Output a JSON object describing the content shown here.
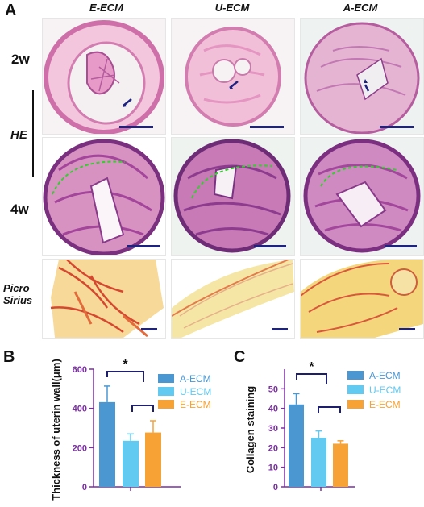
{
  "figure": {
    "panel_a_letter": "A",
    "panel_b_letter": "B",
    "panel_c_letter": "C",
    "columns": [
      "E-ECM",
      "U-ECM",
      "A-ECM"
    ],
    "rows": {
      "w2": "2w",
      "he": "HE",
      "w4": "4w",
      "picro_line1": "Picro",
      "picro_line2": "Sirius"
    }
  },
  "colors": {
    "a_ecm": "#4a97d2",
    "u_ecm": "#62c9f1",
    "e_ecm": "#f6a234",
    "axis": "#7b2fa1",
    "bracket": "#1d1f6e",
    "he_pink": "#e88fc0",
    "he_purple": "#9a3c8f",
    "sirius_red": "#d8503a",
    "sirius_yellow": "#f6e6a6",
    "scale_bar": "#1d237e"
  },
  "chart_data": [
    {
      "type": "bar",
      "categories": [
        "A-ECM",
        "U-ECM",
        "E-ECM"
      ],
      "values": [
        432,
        235,
        277
      ],
      "errors": [
        82,
        35,
        60
      ],
      "ylabel": "Thickness of uterin wall(μm)",
      "ylim": [
        0,
        600
      ],
      "yticks": [
        "0",
        "200",
        "400",
        "600"
      ],
      "legend": [
        "A-ECM",
        "U-ECM",
        "E-ECM"
      ],
      "legend_position": "right",
      "significance": [
        "*"
      ]
    },
    {
      "type": "bar",
      "categories": [
        "A-ECM",
        "U-ECM",
        "E-ECM"
      ],
      "values": [
        42,
        25,
        22
      ],
      "errors": [
        5.5,
        3.5,
        1.5
      ],
      "ylabel": "Collagen staining",
      "ylim": [
        0,
        60
      ],
      "yticks": [
        "0",
        "10",
        "20",
        "30",
        "40",
        "50"
      ],
      "legend": [
        "A-ECM",
        "U-ECM",
        "E-ECM"
      ],
      "legend_position": "right",
      "significance": [
        "*"
      ]
    }
  ]
}
